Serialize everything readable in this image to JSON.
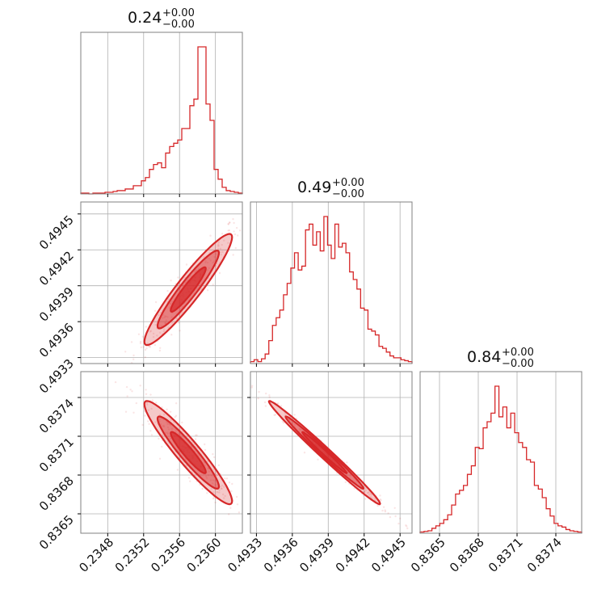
{
  "chart_data": {
    "type": "corner",
    "color": "#d62728",
    "parameters": [
      {
        "title_value": "0.24",
        "title_plus": "+0.00",
        "title_minus": "−0.00",
        "range": [
          0.2345,
          0.2363
        ],
        "ticks": [
          0.2348,
          0.2352,
          0.2356,
          0.236
        ],
        "tick_labels": [
          "0.2348",
          "0.2352",
          "0.2356",
          "0.2360"
        ],
        "hist": [
          1,
          1,
          0,
          1,
          1,
          1,
          2,
          2,
          3,
          4,
          4,
          6,
          6,
          10,
          10,
          16,
          20,
          30,
          36,
          38,
          32,
          50,
          58,
          62,
          66,
          80,
          80,
          108,
          116,
          180,
          180,
          110,
          90,
          30,
          18,
          8,
          4,
          3,
          2,
          1
        ]
      },
      {
        "title_value": "0.49",
        "title_plus": "+0.00",
        "title_minus": "−0.00",
        "range": [
          0.49325,
          0.4946
        ],
        "ticks": [
          0.4933,
          0.4936,
          0.4939,
          0.4942,
          0.4945
        ],
        "tick_labels": [
          "0.4933",
          "0.4936",
          "0.4939",
          "0.4942",
          "0.4945"
        ],
        "hist": [
          2,
          4,
          2,
          5,
          10,
          24,
          40,
          48,
          56,
          72,
          84,
          100,
          116,
          98,
          102,
          140,
          146,
          124,
          138,
          118,
          154,
          124,
          110,
          146,
          122,
          126,
          116,
          96,
          88,
          78,
          58,
          56,
          36,
          34,
          30,
          18,
          16,
          12,
          8,
          6,
          6,
          4,
          3,
          2
        ]
      },
      {
        "title_value": "0.84",
        "title_plus": "+0.00",
        "title_minus": "−0.00",
        "range": [
          0.83635,
          0.8376
        ],
        "ticks": [
          0.8365,
          0.8368,
          0.8371,
          0.8374
        ],
        "tick_labels": [
          "0.8365",
          "0.8368",
          "0.8371",
          "0.8374"
        ],
        "hist": [
          2,
          3,
          4,
          8,
          12,
          16,
          22,
          30,
          46,
          64,
          70,
          78,
          96,
          110,
          140,
          138,
          172,
          182,
          196,
          240,
          190,
          206,
          172,
          196,
          164,
          148,
          140,
          120,
          116,
          78,
          72,
          58,
          40,
          28,
          16,
          12,
          10,
          6,
          4,
          3,
          2
        ]
      }
    ],
    "pairs": [
      {
        "x_param": 0,
        "y_param": 1,
        "correlation": 0.94
      },
      {
        "x_param": 0,
        "y_param": 2,
        "correlation": -0.94
      },
      {
        "x_param": 1,
        "y_param": 2,
        "correlation": -0.99
      }
    ],
    "grid": true
  }
}
